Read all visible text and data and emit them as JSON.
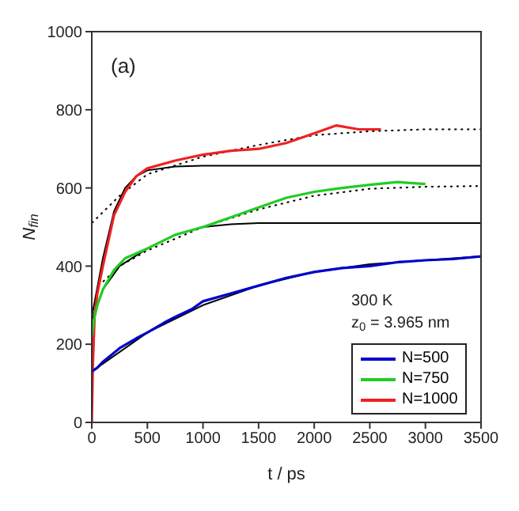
{
  "chart_data": {
    "type": "line",
    "xlabel": "t / ps",
    "ylabel": "N$_{fin}$",
    "xlim": [
      0,
      3500
    ],
    "ylim": [
      0,
      1000
    ],
    "xticks": [
      0,
      500,
      1000,
      1500,
      2000,
      2500,
      3000,
      3500
    ],
    "yticks": [
      0,
      200,
      400,
      600,
      800,
      1000
    ],
    "grid": false,
    "legend": "bottom right",
    "marker": "none",
    "annotations": [
      "(a)",
      "300 K",
      "z$_{0}$ = 3.965 nm"
    ],
    "series": [
      {
        "name": "N=500",
        "color": "#0000cc",
        "x": [
          0,
          50,
          100,
          250,
          400,
          500,
          650,
          750,
          900,
          1000,
          1250,
          1500,
          1750,
          2000,
          2250,
          2500,
          2750,
          3000,
          3250,
          3500
        ],
        "values": [
          130,
          140,
          155,
          190,
          215,
          230,
          255,
          270,
          290,
          310,
          330,
          350,
          370,
          385,
          395,
          400,
          410,
          415,
          418,
          425
        ]
      },
      {
        "name": "N=750",
        "color": "#22cc22",
        "x": [
          0,
          25,
          50,
          100,
          200,
          300,
          500,
          750,
          1000,
          1250,
          1500,
          1750,
          2000,
          2250,
          2500,
          2750,
          3000
        ],
        "values": [
          220,
          270,
          300,
          340,
          390,
          420,
          445,
          480,
          500,
          525,
          550,
          575,
          590,
          600,
          608,
          615,
          610
        ]
      },
      {
        "name": "N=1000",
        "color": "#ee2222",
        "x": [
          0,
          10,
          25,
          50,
          100,
          200,
          300,
          400,
          500,
          750,
          1000,
          1250,
          1500,
          1750,
          2000,
          2200,
          2400,
          2600
        ],
        "values": [
          0,
          150,
          270,
          330,
          400,
          530,
          590,
          630,
          650,
          670,
          685,
          695,
          700,
          715,
          740,
          760,
          750,
          750
        ]
      },
      {
        "color": "#000000",
        "x": [
          0,
          500,
          1000,
          1500,
          2000,
          2500,
          3000,
          3500
        ],
        "values": [
          130,
          230,
          300,
          350,
          385,
          405,
          415,
          425
        ]
      },
      {
        "color": "#000000",
        "x": [
          0,
          100,
          250,
          500,
          750,
          1000,
          1250,
          1500,
          2500,
          3500
        ],
        "values": [
          260,
          340,
          400,
          445,
          480,
          500,
          507,
          510,
          510,
          510
        ]
      },
      {
        "color": "#000000",
        "x": [
          0,
          100,
          200,
          300,
          400,
          500,
          750,
          1000,
          2000,
          3500
        ],
        "values": [
          270,
          420,
          540,
          600,
          630,
          645,
          655,
          657,
          657,
          657
        ]
      },
      {
        "color": "#000000",
        "line_style": "dotted",
        "x": [
          100,
          250,
          500,
          1000,
          1500,
          2000,
          2500,
          3000,
          3500
        ],
        "values": [
          360,
          400,
          440,
          500,
          545,
          580,
          598,
          603,
          605
        ]
      },
      {
        "color": "#000000",
        "line_style": "dotted",
        "x": [
          0,
          250,
          500,
          1000,
          1500,
          2000,
          2500,
          3000,
          3500
        ],
        "values": [
          510,
          580,
          635,
          680,
          710,
          735,
          745,
          750,
          750
        ]
      }
    ]
  }
}
